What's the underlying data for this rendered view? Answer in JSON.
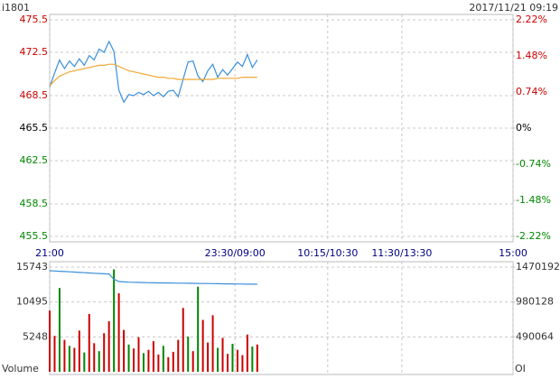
{
  "chart_data": [
    {
      "type": "line",
      "title": "i1801",
      "subtitle": "2017/11/21 09:19",
      "x": [
        0,
        4,
        8,
        12,
        16,
        20,
        24,
        28,
        32,
        36,
        40,
        44,
        48,
        52,
        56,
        60,
        64,
        68,
        72,
        76,
        80,
        84,
        88,
        92,
        96,
        100,
        104,
        108,
        112,
        116,
        120,
        124,
        128,
        132,
        136,
        140,
        144,
        148,
        152,
        156,
        160,
        164,
        168
      ],
      "xlim": [
        0,
        375
      ],
      "xticks": [
        {
          "value": 0,
          "label": "21:00"
        },
        {
          "value": 150,
          "label": "23:30/09:00"
        },
        {
          "value": 225,
          "label": "10:15/10:30"
        },
        {
          "value": 285,
          "label": "11:30/13:30"
        },
        {
          "value": 375,
          "label": "15:00"
        }
      ],
      "ylim": [
        455.5,
        475.5
      ],
      "yticks": [
        475.5,
        472.5,
        468.5,
        465.5,
        462.5,
        458.5,
        455.5
      ],
      "y2lim": [
        -2.22,
        2.22
      ],
      "y2ticks": [
        {
          "value": 2.22,
          "label": "2.22%"
        },
        {
          "value": 1.48,
          "label": "1.48%"
        },
        {
          "value": 0.74,
          "label": "0.74%"
        },
        {
          "value": 0,
          "label": "0%"
        },
        {
          "value": -0.74,
          "label": "-0.74%"
        },
        {
          "value": -1.48,
          "label": "-1.48%"
        },
        {
          "value": -2.22,
          "label": "-2.22%"
        }
      ],
      "grid": true,
      "up_color": "#cc0000",
      "down_color": "#008800",
      "flat_color": "#000000",
      "series": [
        {
          "color": "#3a8fd9",
          "values": [
            469.3,
            470.6,
            471.8,
            471.0,
            471.7,
            471.2,
            471.9,
            471.3,
            472.2,
            471.8,
            472.8,
            472.5,
            473.5,
            472.6,
            469.0,
            467.9,
            468.6,
            468.5,
            468.8,
            468.6,
            468.9,
            468.5,
            468.8,
            468.4,
            468.9,
            469.0,
            468.4,
            470.0,
            471.6,
            471.7,
            470.3,
            469.8,
            470.8,
            471.4,
            470.2,
            470.9,
            470.4,
            471.0,
            471.6,
            471.2,
            472.3,
            471.1,
            471.8
          ]
        },
        {
          "color": "#f0a830",
          "values": [
            469.4,
            469.9,
            470.3,
            470.5,
            470.7,
            470.8,
            470.9,
            471.0,
            471.1,
            471.2,
            471.3,
            471.3,
            471.4,
            471.4,
            471.2,
            471.0,
            470.8,
            470.7,
            470.6,
            470.5,
            470.4,
            470.3,
            470.2,
            470.2,
            470.1,
            470.1,
            470.0,
            470.0,
            470.0,
            470.0,
            470.0,
            470.0,
            470.0,
            470.0,
            470.1,
            470.1,
            470.1,
            470.1,
            470.1,
            470.2,
            470.2,
            470.2,
            470.2
          ]
        }
      ]
    },
    {
      "type": "bar",
      "x": [
        0,
        4,
        8,
        12,
        16,
        20,
        24,
        28,
        32,
        36,
        40,
        44,
        48,
        52,
        56,
        60,
        64,
        68,
        72,
        76,
        80,
        84,
        88,
        92,
        96,
        100,
        104,
        108,
        112,
        116,
        120,
        124,
        128,
        132,
        136,
        140,
        144,
        148,
        152,
        156,
        160,
        164,
        168
      ],
      "xlim": [
        0,
        375
      ],
      "ylabel": "Volume",
      "y2label": "OI",
      "ylim": [
        0,
        15743
      ],
      "yticks": [
        5248,
        10495,
        15743
      ],
      "y2lim": [
        0,
        1470192
      ],
      "y2ticks": [
        490064,
        980128,
        1470192
      ],
      "grid": true,
      "series": [
        {
          "values": [
            9200,
            5400,
            12600,
            4800,
            3900,
            3600,
            6200,
            2900,
            8700,
            4300,
            3100,
            5800,
            7600,
            15400,
            11800,
            6300,
            4100,
            3500,
            5200,
            2800,
            3300,
            4600,
            2600,
            3900,
            2200,
            3000,
            4800,
            9600,
            5300,
            3100,
            12800,
            7800,
            4400,
            8500,
            3600,
            5100,
            2700,
            4200,
            3300,
            2500,
            5600,
            3800,
            4100
          ],
          "colors": [
            "#cc0000",
            "#cc0000",
            "#008800",
            "#cc0000",
            "#008800",
            "#cc0000",
            "#cc0000",
            "#008800",
            "#cc0000",
            "#cc0000",
            "#008800",
            "#cc0000",
            "#cc0000",
            "#008800",
            "#cc0000",
            "#cc0000",
            "#008800",
            "#cc0000",
            "#cc0000",
            "#008800",
            "#cc0000",
            "#cc0000",
            "#cc0000",
            "#008800",
            "#cc0000",
            "#cc0000",
            "#cc0000",
            "#cc0000",
            "#008800",
            "#cc0000",
            "#008800",
            "#cc0000",
            "#cc0000",
            "#cc0000",
            "#008800",
            "#cc0000",
            "#cc0000",
            "#008800",
            "#cc0000",
            "#cc0000",
            "#cc0000",
            "#008800",
            "#cc0000"
          ]
        },
        {
          "type": "line",
          "axis": "y2",
          "color": "#3a8fd9",
          "values": [
            1419500,
            1416000,
            1412000,
            1408000,
            1404000,
            1400000,
            1396000,
            1392000,
            1388000,
            1384000,
            1380000,
            1376000,
            1372000,
            1300000,
            1267000,
            1262000,
            1259000,
            1257000,
            1255000,
            1253000,
            1251000,
            1250000,
            1249000,
            1248000,
            1247000,
            1246000,
            1245000,
            1244000,
            1243000,
            1242000,
            1241000,
            1240000,
            1239000,
            1238000,
            1237000,
            1236000,
            1235000,
            1234000,
            1233000,
            1232000,
            1231000,
            1230500,
            1230000
          ]
        }
      ]
    }
  ]
}
